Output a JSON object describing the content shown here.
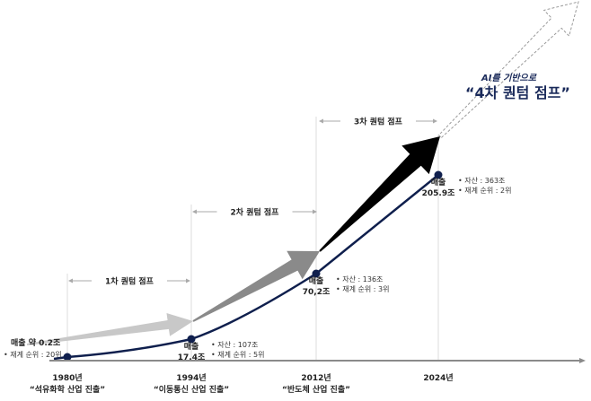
{
  "chart_data": {
    "type": "line",
    "title": "",
    "x": [
      "1980년",
      "1994년",
      "2012년",
      "2024년"
    ],
    "x_captions": [
      "“석유화학 산업 진출”",
      "“이동통신 산업 진출”",
      "“반도체 산업 진출”",
      ""
    ],
    "series": [
      {
        "values": [
          0.2,
          17.4,
          70.2,
          205.9
        ]
      }
    ],
    "point_labels": [
      {
        "title": "매출 약 0.2조",
        "value": "",
        "bullets": [
          "• 재계 순위 : 20위"
        ]
      },
      {
        "title": "매출",
        "value": "17.4조",
        "bullets": [
          "• 자산 : 107조",
          "• 재계 순위 : 5위"
        ]
      },
      {
        "title": "매출",
        "value": "70,2조",
        "bullets": [
          "• 자산 : 136조",
          "• 재계 순위 : 3위"
        ]
      },
      {
        "title": "매출",
        "value": "205.9조",
        "bullets": [
          "• 자산 : 363조",
          "• 재계 순위 : 2위"
        ]
      }
    ],
    "jumps": [
      "1차 퀀텀 점프",
      "2차 퀀텀 점프",
      "3차 퀀텀 점프"
    ],
    "future": {
      "subtitle": "AI를 기반으로",
      "title": "“4차 퀀텀 점프”"
    },
    "colors": {
      "line": "#0f1f4d",
      "arrow1": "#c8c8c8",
      "arrow2": "#8a8a8a",
      "arrow3": "#000000",
      "accent": "#1a2a5a"
    }
  }
}
